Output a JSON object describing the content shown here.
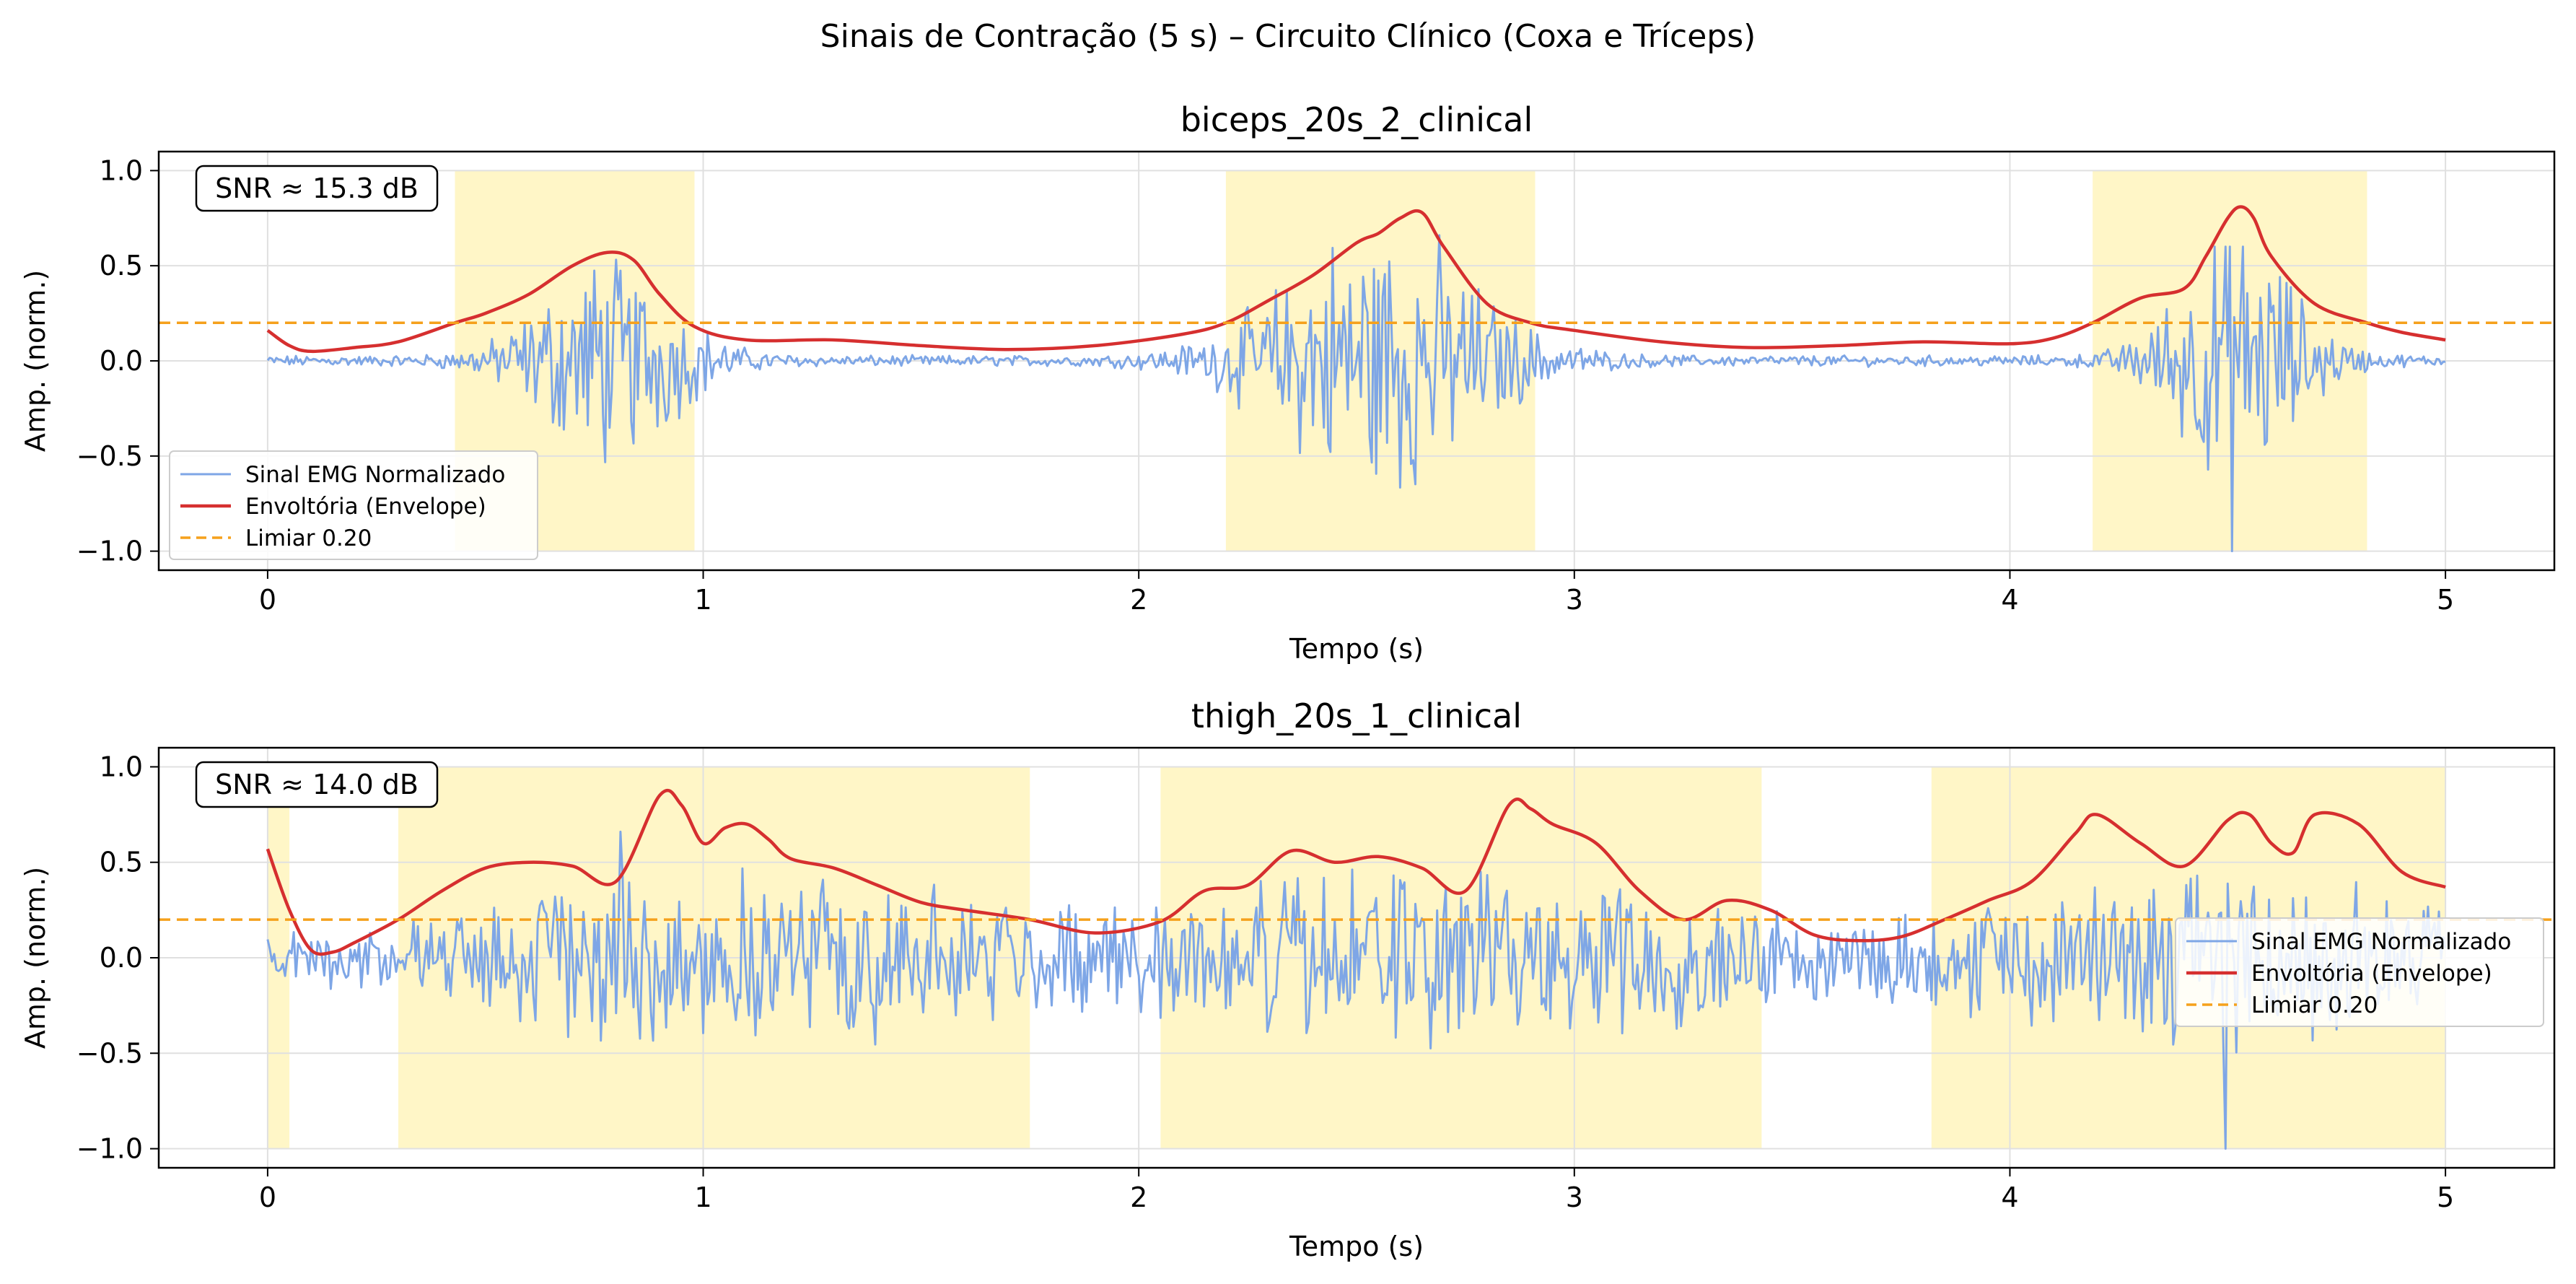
{
  "figure": {
    "suptitle": "Sinais de Contração (5 s) – Circuito Clínico (Coxa e Tríceps)"
  },
  "colors": {
    "signal": "#7ea6e6",
    "envelope": "#d62f2f",
    "threshold": "#f5a11c",
    "activation": "#fff6c7",
    "grid": "#e0e0e0"
  },
  "chart_data": [
    {
      "type": "line",
      "title": "biceps_20s_2_clinical",
      "xlabel": "Tempo (s)",
      "ylabel": "Amp. (norm.)",
      "xlim": [
        -0.25,
        5.25
      ],
      "ylim": [
        -1.1,
        1.1
      ],
      "xticks": [
        0,
        1,
        2,
        3,
        4,
        5
      ],
      "yticks": [
        -1.0,
        -0.5,
        0.0,
        0.5,
        1.0
      ],
      "grid": true,
      "annotation": "SNR ≈ 15.3 dB",
      "legend": {
        "placement": "lower-left",
        "entries": [
          "Sinal EMG Normalizado",
          "Envoltória (Envelope)",
          "Limiar 0.20"
        ]
      },
      "threshold": 0.2,
      "activation_regions": [
        [
          0.43,
          0.98
        ],
        [
          2.2,
          2.91
        ],
        [
          4.19,
          4.82
        ]
      ],
      "envelope": {
        "x": [
          0,
          0.05,
          0.1,
          0.2,
          0.3,
          0.43,
          0.5,
          0.6,
          0.7,
          0.78,
          0.84,
          0.9,
          0.98,
          1.1,
          1.3,
          1.5,
          1.7,
          1.9,
          2.1,
          2.2,
          2.3,
          2.4,
          2.5,
          2.55,
          2.6,
          2.65,
          2.7,
          2.8,
          2.9,
          3.0,
          3.2,
          3.4,
          3.6,
          3.8,
          4.0,
          4.1,
          4.19,
          4.3,
          4.4,
          4.45,
          4.5,
          4.53,
          4.56,
          4.6,
          4.7,
          4.82,
          4.9,
          5.0
        ],
        "y": [
          0.16,
          0.08,
          0.05,
          0.07,
          0.1,
          0.2,
          0.25,
          0.35,
          0.5,
          0.57,
          0.53,
          0.35,
          0.18,
          0.11,
          0.11,
          0.08,
          0.06,
          0.08,
          0.14,
          0.2,
          0.32,
          0.45,
          0.62,
          0.67,
          0.75,
          0.78,
          0.6,
          0.3,
          0.2,
          0.16,
          0.1,
          0.07,
          0.08,
          0.1,
          0.09,
          0.12,
          0.2,
          0.33,
          0.38,
          0.55,
          0.75,
          0.81,
          0.75,
          0.55,
          0.3,
          0.2,
          0.15,
          0.11
        ]
      },
      "signal": {
        "samples_per_second": 200,
        "noise": 0.02,
        "peak": [
          -1.0,
          0.66
        ],
        "bursts": [
          {
            "center": 0.78,
            "width": 0.14,
            "amplitude": 0.38
          },
          {
            "center": 2.55,
            "width": 0.2,
            "amplitude": 0.52
          },
          {
            "center": 4.52,
            "width": 0.12,
            "amplitude": 0.5
          }
        ]
      }
    },
    {
      "type": "line",
      "title": "thigh_20s_1_clinical",
      "xlabel": "Tempo (s)",
      "ylabel": "Amp. (norm.)",
      "xlim": [
        -0.25,
        5.25
      ],
      "ylim": [
        -1.1,
        1.1
      ],
      "xticks": [
        0,
        1,
        2,
        3,
        4,
        5
      ],
      "yticks": [
        -1.0,
        -0.5,
        0.0,
        0.5,
        1.0
      ],
      "grid": true,
      "annotation": "SNR ≈ 14.0 dB",
      "legend": {
        "placement": "center-right",
        "entries": [
          "Sinal EMG Normalizado",
          "Envoltória (Envelope)",
          "Limiar 0.20"
        ]
      },
      "threshold": 0.2,
      "activation_regions": [
        [
          0.0,
          0.05
        ],
        [
          0.3,
          1.75
        ],
        [
          2.05,
          3.43
        ],
        [
          3.82,
          5.0
        ]
      ],
      "envelope": {
        "x": [
          0,
          0.05,
          0.1,
          0.15,
          0.2,
          0.3,
          0.4,
          0.5,
          0.6,
          0.7,
          0.8,
          0.9,
          0.95,
          1.0,
          1.05,
          1.1,
          1.15,
          1.2,
          1.3,
          1.4,
          1.5,
          1.6,
          1.75,
          1.9,
          2.05,
          2.15,
          2.25,
          2.35,
          2.45,
          2.55,
          2.65,
          2.75,
          2.85,
          2.9,
          2.95,
          3.05,
          3.15,
          3.25,
          3.35,
          3.45,
          3.55,
          3.65,
          3.75,
          3.85,
          3.95,
          4.05,
          4.15,
          4.2,
          4.3,
          4.4,
          4.5,
          4.55,
          4.6,
          4.65,
          4.7,
          4.8,
          4.9,
          5.0
        ],
        "y": [
          0.57,
          0.25,
          0.04,
          0.03,
          0.08,
          0.2,
          0.35,
          0.47,
          0.5,
          0.48,
          0.4,
          0.85,
          0.8,
          0.6,
          0.68,
          0.7,
          0.62,
          0.52,
          0.47,
          0.38,
          0.29,
          0.25,
          0.2,
          0.13,
          0.19,
          0.35,
          0.38,
          0.56,
          0.5,
          0.53,
          0.47,
          0.35,
          0.8,
          0.78,
          0.7,
          0.6,
          0.35,
          0.2,
          0.3,
          0.25,
          0.12,
          0.09,
          0.11,
          0.2,
          0.3,
          0.4,
          0.65,
          0.75,
          0.6,
          0.48,
          0.72,
          0.75,
          0.6,
          0.55,
          0.75,
          0.7,
          0.45,
          0.37
        ]
      },
      "signal": {
        "samples_per_second": 200,
        "noise": 0.02,
        "peak": [
          -1.0,
          0.66
        ],
        "bursts": [
          {
            "center": 1.02,
            "width": 0.55,
            "amplitude": 0.32
          },
          {
            "center": 2.75,
            "width": 0.55,
            "amplitude": 0.32
          },
          {
            "center": 4.45,
            "width": 0.45,
            "amplitude": 0.32
          }
        ]
      }
    }
  ]
}
